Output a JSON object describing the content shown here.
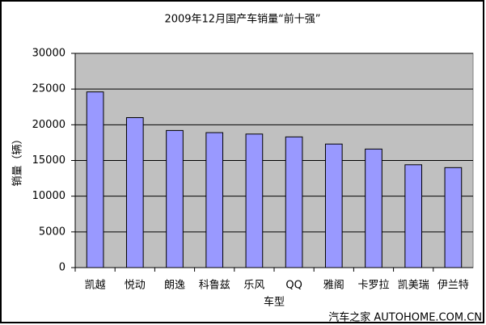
{
  "chart_data": {
    "type": "bar",
    "title": "2009年12月国产车销量“前十强”",
    "x_label": "车型",
    "y_label": "销量（辆）",
    "categories": [
      "凯越",
      "悦动",
      "朗逸",
      "科鲁兹",
      "乐风",
      "QQ",
      "雅阁",
      "卡罗拉",
      "凯美瑞",
      "伊兰特"
    ],
    "values": [
      24600,
      21000,
      19200,
      18900,
      18700,
      18300,
      17300,
      16600,
      14400,
      14000
    ],
    "color": "#9999ff",
    "ylim": [
      0,
      30000
    ],
    "yticks": [
      0,
      5000,
      10000,
      15000,
      20000,
      25000,
      30000
    ],
    "grid": true,
    "watermark": "汽车之家 AUTOHOME.COM.CN"
  }
}
